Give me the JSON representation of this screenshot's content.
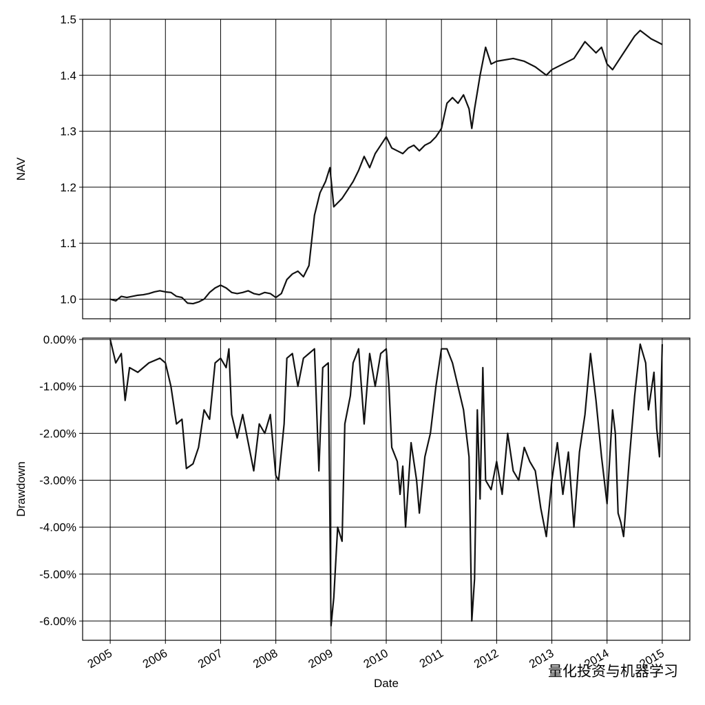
{
  "chart_data": [
    {
      "type": "line",
      "ylabel": "NAV",
      "color": "#111111",
      "grid": true,
      "show_xtick_labels": false,
      "xlim": [
        2004.5,
        2015.5
      ],
      "xticks": [
        2005,
        2006,
        2007,
        2008,
        2009,
        2010,
        2011,
        2012,
        2013,
        2014,
        2015
      ],
      "ylim": [
        0.965,
        1.5
      ],
      "yticks": [
        {
          "value": 1,
          "label": "1.0"
        },
        1.1,
        1.2,
        1.3,
        1.4,
        1.5
      ],
      "x": [
        2005.0,
        2005.1,
        2005.2,
        2005.3,
        2005.4,
        2005.5,
        2005.6,
        2005.7,
        2005.8,
        2005.9,
        2006.0,
        2006.1,
        2006.2,
        2006.3,
        2006.4,
        2006.5,
        2006.6,
        2006.7,
        2006.8,
        2006.9,
        2007.0,
        2007.1,
        2007.2,
        2007.3,
        2007.4,
        2007.5,
        2007.6,
        2007.7,
        2007.8,
        2007.9,
        2008.0,
        2008.1,
        2008.2,
        2008.3,
        2008.4,
        2008.5,
        2008.6,
        2008.7,
        2008.8,
        2008.9,
        2008.98,
        2009.05,
        2009.2,
        2009.4,
        2009.5,
        2009.6,
        2009.7,
        2009.8,
        2009.9,
        2010.0,
        2010.1,
        2010.2,
        2010.3,
        2010.4,
        2010.5,
        2010.6,
        2010.7,
        2010.8,
        2010.9,
        2011.0,
        2011.1,
        2011.2,
        2011.3,
        2011.4,
        2011.5,
        2011.55,
        2011.6,
        2011.7,
        2011.8,
        2011.9,
        2012.0,
        2012.3,
        2012.5,
        2012.7,
        2012.9,
        2013.0,
        2013.2,
        2013.4,
        2013.6,
        2013.8,
        2013.9,
        2014.0,
        2014.1,
        2014.3,
        2014.5,
        2014.6,
        2014.8,
        2014.9,
        2015.0
      ],
      "values": [
        1.0,
        0.997,
        1.005,
        1.003,
        1.005,
        1.007,
        1.008,
        1.01,
        1.013,
        1.015,
        1.013,
        1.012,
        1.005,
        1.003,
        0.993,
        0.992,
        0.995,
        1.0,
        1.012,
        1.02,
        1.025,
        1.02,
        1.012,
        1.01,
        1.012,
        1.015,
        1.01,
        1.008,
        1.012,
        1.01,
        1.003,
        1.01,
        1.035,
        1.045,
        1.05,
        1.04,
        1.06,
        1.15,
        1.19,
        1.21,
        1.235,
        1.165,
        1.18,
        1.21,
        1.23,
        1.255,
        1.235,
        1.26,
        1.275,
        1.29,
        1.27,
        1.265,
        1.26,
        1.27,
        1.275,
        1.265,
        1.275,
        1.28,
        1.29,
        1.305,
        1.35,
        1.36,
        1.35,
        1.365,
        1.34,
        1.305,
        1.34,
        1.4,
        1.45,
        1.42,
        1.425,
        1.43,
        1.425,
        1.415,
        1.4,
        1.41,
        1.42,
        1.43,
        1.46,
        1.44,
        1.45,
        1.42,
        1.41,
        1.44,
        1.47,
        1.48,
        1.465,
        1.46,
        1.455
      ]
    },
    {
      "type": "line",
      "ylabel": "Drawdown",
      "xlabel": "Date",
      "color": "#111111",
      "grid": true,
      "show_xtick_labels": true,
      "xlim": [
        2004.5,
        2015.5
      ],
      "xticks": [
        2005,
        2006,
        2007,
        2008,
        2009,
        2010,
        2011,
        2012,
        2013,
        2014,
        2015
      ],
      "ylim": [
        -6.41,
        0.03
      ],
      "yticks": [
        {
          "value": 0,
          "label": "0.00%"
        },
        {
          "value": -1,
          "label": "-1.00%"
        },
        {
          "value": -2,
          "label": "-2.00%"
        },
        {
          "value": -3,
          "label": "-3.00%"
        },
        {
          "value": -4,
          "label": "-4.00%"
        },
        {
          "value": -5,
          "label": "-5.00%"
        },
        {
          "value": -6,
          "label": "-6.00%"
        }
      ],
      "x": [
        2005.0,
        2005.1,
        2005.2,
        2005.27,
        2005.35,
        2005.5,
        2005.7,
        2005.9,
        2006.0,
        2006.1,
        2006.2,
        2006.3,
        2006.38,
        2006.5,
        2006.6,
        2006.7,
        2006.8,
        2006.9,
        2007.0,
        2007.1,
        2007.15,
        2007.2,
        2007.3,
        2007.4,
        2007.5,
        2007.6,
        2007.7,
        2007.8,
        2007.9,
        2008.0,
        2008.05,
        2008.15,
        2008.2,
        2008.3,
        2008.4,
        2008.5,
        2008.6,
        2008.7,
        2008.78,
        2008.85,
        2008.95,
        2009.0,
        2009.05,
        2009.12,
        2009.2,
        2009.25,
        2009.35,
        2009.4,
        2009.5,
        2009.6,
        2009.7,
        2009.8,
        2009.9,
        2010.0,
        2010.05,
        2010.1,
        2010.2,
        2010.25,
        2010.3,
        2010.35,
        2010.45,
        2010.55,
        2010.6,
        2010.7,
        2010.8,
        2010.9,
        2011.0,
        2011.1,
        2011.2,
        2011.3,
        2011.4,
        2011.5,
        2011.55,
        2011.6,
        2011.65,
        2011.7,
        2011.75,
        2011.8,
        2011.9,
        2012.0,
        2012.1,
        2012.2,
        2012.3,
        2012.4,
        2012.5,
        2012.6,
        2012.7,
        2012.8,
        2012.9,
        2013.0,
        2013.1,
        2013.2,
        2013.3,
        2013.4,
        2013.5,
        2013.6,
        2013.7,
        2013.8,
        2013.9,
        2014.0,
        2014.1,
        2014.15,
        2014.2,
        2014.25,
        2014.3,
        2014.4,
        2014.5,
        2014.6,
        2014.7,
        2014.75,
        2014.85,
        2014.9,
        2014.95,
        2015.0
      ],
      "values": [
        0,
        -0.5,
        -0.3,
        -1.3,
        -0.6,
        -0.7,
        -0.5,
        -0.4,
        -0.5,
        -1.0,
        -1.8,
        -1.7,
        -2.75,
        -2.65,
        -2.3,
        -1.5,
        -1.7,
        -0.5,
        -0.4,
        -0.6,
        -0.2,
        -1.6,
        -2.1,
        -1.6,
        -2.2,
        -2.8,
        -1.8,
        -2.0,
        -1.6,
        -2.9,
        -3.0,
        -1.8,
        -0.4,
        -0.3,
        -1.0,
        -0.4,
        -0.3,
        -0.2,
        -2.8,
        -0.6,
        -0.5,
        -6.1,
        -5.5,
        -4.0,
        -4.3,
        -1.8,
        -1.2,
        -0.5,
        -0.2,
        -1.8,
        -0.3,
        -1.0,
        -0.3,
        -0.2,
        -1.0,
        -2.3,
        -2.6,
        -3.3,
        -2.7,
        -4.0,
        -2.2,
        -3.0,
        -3.7,
        -2.5,
        -2.0,
        -1.0,
        -0.2,
        -0.2,
        -0.5,
        -1.0,
        -1.5,
        -2.5,
        -6.0,
        -5.1,
        -1.5,
        -3.4,
        -0.6,
        -3.0,
        -3.2,
        -2.6,
        -3.3,
        -2.0,
        -2.8,
        -3.0,
        -2.3,
        -2.6,
        -2.8,
        -3.6,
        -4.2,
        -3.0,
        -2.2,
        -3.3,
        -2.4,
        -4.0,
        -2.4,
        -1.6,
        -0.3,
        -1.3,
        -2.5,
        -3.5,
        -1.5,
        -2.0,
        -3.7,
        -3.9,
        -4.2,
        -2.6,
        -1.2,
        -0.1,
        -0.5,
        -1.5,
        -0.7,
        -1.9,
        -2.5,
        -0.1
      ]
    }
  ],
  "watermark": "量化投资与机器学习"
}
